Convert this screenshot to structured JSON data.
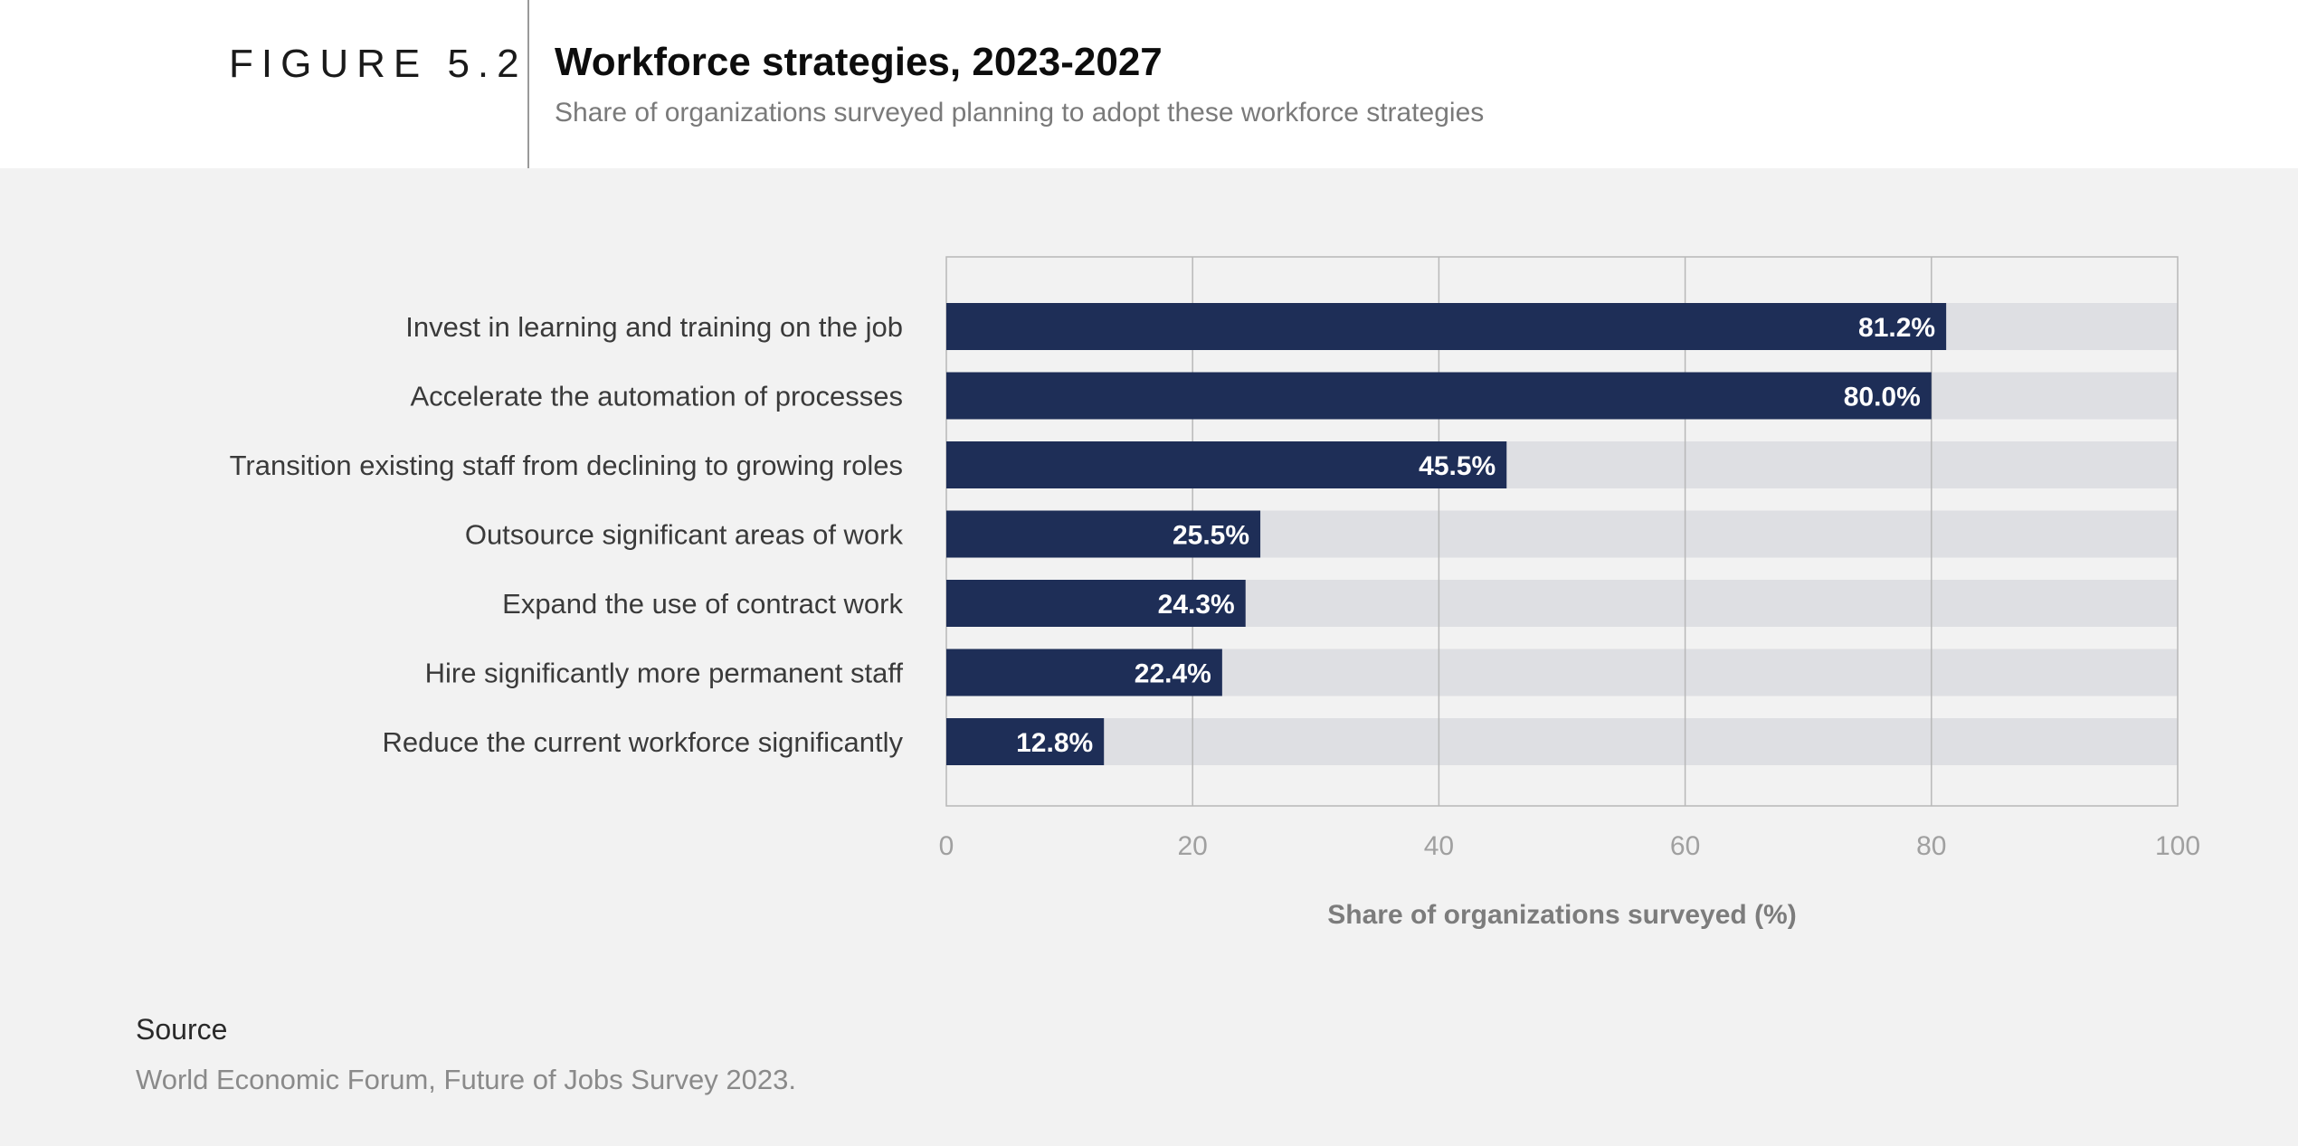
{
  "figure": {
    "label": "FIGURE 5.2",
    "title": "Workforce strategies, 2023-2027",
    "subtitle": "Share of organizations surveyed planning to adopt these workforce strategies"
  },
  "chart_data": {
    "type": "bar",
    "orientation": "horizontal",
    "title": "Workforce strategies, 2023-2027",
    "categories": [
      "Invest in learning and training on the job",
      "Accelerate the automation of processes",
      "Transition existing staff from declining to growing roles",
      "Outsource significant areas of work",
      "Expand the use of contract work",
      "Hire significantly more permanent staff",
      "Reduce the current workforce significantly"
    ],
    "values": [
      81.2,
      80.0,
      45.5,
      25.5,
      24.3,
      22.4,
      12.8
    ],
    "value_labels": [
      "81.2%",
      "80.0%",
      "45.5%",
      "25.5%",
      "24.3%",
      "22.4%",
      "12.8%"
    ],
    "xlabel": "Share of organizations surveyed (%)",
    "ylabel": "",
    "xlim": [
      0,
      100
    ],
    "xticks": [
      0,
      20,
      40,
      60,
      80,
      100
    ],
    "xtick_labels": [
      "0",
      "20",
      "40",
      "60",
      "80",
      "100"
    ],
    "grid": true,
    "colors": {
      "bar": "#1e2e57",
      "track": "#dedfe3",
      "grid": "#b8b8b8"
    }
  },
  "source": {
    "heading": "Source",
    "text": "World Economic Forum, Future of Jobs Survey 2023."
  }
}
